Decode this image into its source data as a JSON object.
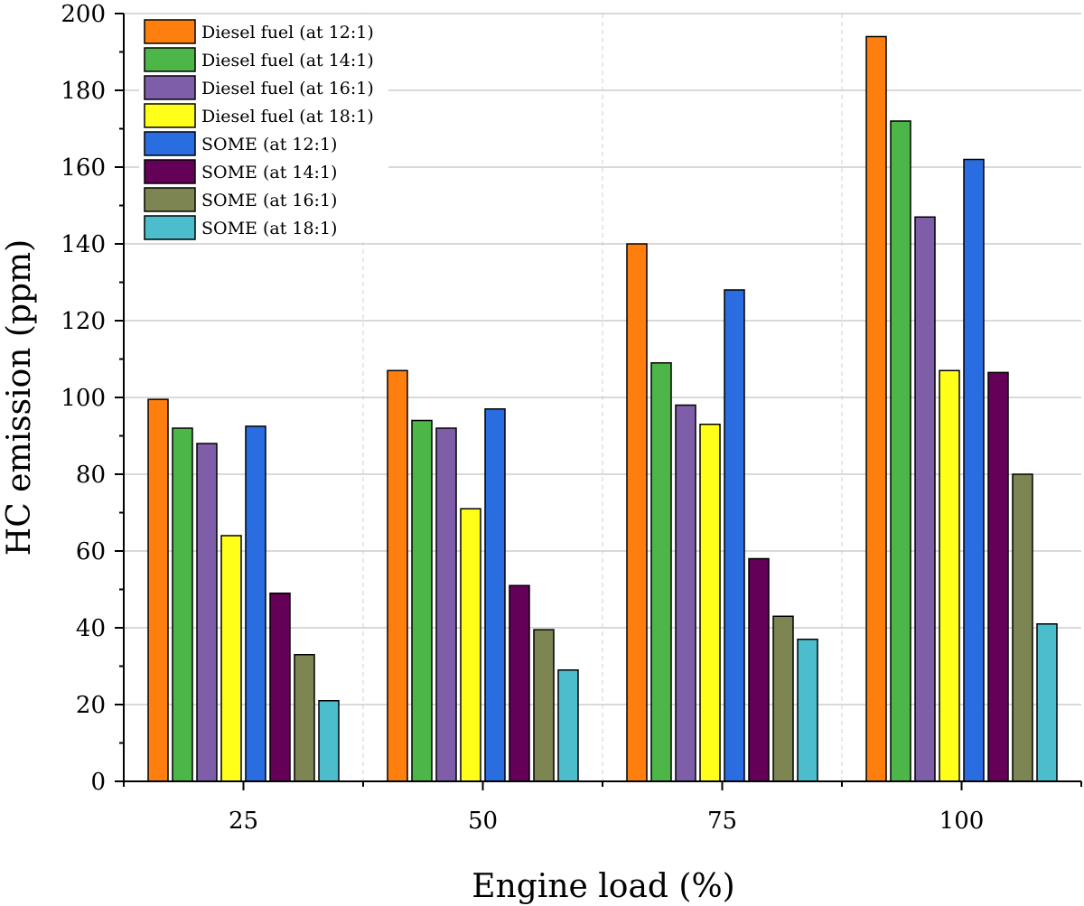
{
  "chart_data": {
    "type": "bar",
    "xlabel": "Engine load (%)",
    "ylabel": "HC emission (ppm)",
    "categories": [
      "25",
      "50",
      "75",
      "100"
    ],
    "ylim": [
      0,
      200
    ],
    "yticks": [
      0,
      20,
      40,
      60,
      80,
      100,
      120,
      140,
      160,
      180,
      200
    ],
    "grid": "horizontal",
    "legend_position": "top-left",
    "series": [
      {
        "name": "Diesel fuel (at 12:1)",
        "color": "#ff7f0e",
        "values": [
          99.5,
          107,
          140,
          194
        ]
      },
      {
        "name": "Diesel fuel (at 14:1)",
        "color": "#4cb748",
        "values": [
          92,
          94,
          109,
          172
        ]
      },
      {
        "name": "Diesel fuel (at 16:1)",
        "color": "#7e5ea8",
        "values": [
          88,
          92,
          98,
          147
        ]
      },
      {
        "name": "Diesel fuel (at 18:1)",
        "color": "#ffff1a",
        "values": [
          64,
          71,
          93,
          107
        ]
      },
      {
        "name": "SOME (at 12:1)",
        "color": "#2a6de0",
        "values": [
          92.5,
          97,
          128,
          162
        ]
      },
      {
        "name": "SOME (at 14:1)",
        "color": "#650058",
        "values": [
          49,
          51,
          58,
          106.5
        ]
      },
      {
        "name": "SOME (at 16:1)",
        "color": "#7d8553",
        "values": [
          33,
          39.5,
          43,
          80
        ]
      },
      {
        "name": "SOME (at 18:1)",
        "color": "#4bbdcd",
        "values": [
          21,
          29,
          37,
          41
        ]
      }
    ]
  }
}
